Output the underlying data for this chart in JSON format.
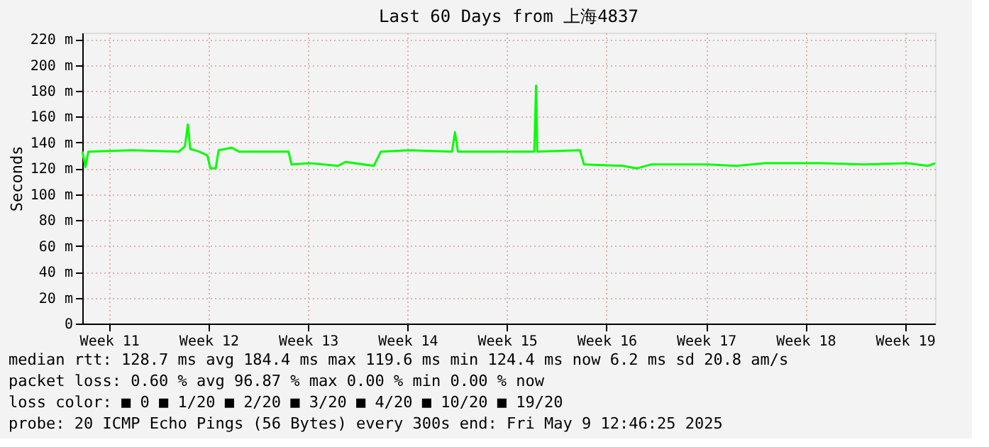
{
  "chart_data": {
    "type": "line",
    "title": "Last 60 Days from 上海4837",
    "ylabel": "Seconds",
    "x": [
      "2025-03-10T13:00",
      "2025-03-10T18:00",
      "2025-03-10T23:00",
      "2025-03-14T01:00",
      "2025-03-17T08:00",
      "2025-03-17T18:00",
      "2025-03-17T23:00",
      "2025-03-18T03:00",
      "2025-03-18T18:00",
      "2025-03-19T08:00",
      "2025-03-19T13:00",
      "2025-03-19T22:00",
      "2025-03-20T03:00",
      "2025-03-21T01:00",
      "2025-03-21T13:00",
      "2025-03-25T01:00",
      "2025-03-25T06:00",
      "2025-03-26T13:00",
      "2025-03-28T13:00",
      "2025-03-29T01:00",
      "2025-03-31T01:00",
      "2025-03-31T13:00",
      "2025-04-02T13:00",
      "2025-04-05T13:00",
      "2025-04-05T18:00",
      "2025-04-05T23:00",
      "2025-04-09T13:00",
      "2025-04-11T08:00",
      "2025-04-11T11:00",
      "2025-04-11T13:00",
      "2025-04-14T13:00",
      "2025-04-14T20:00",
      "2025-04-17T13:00",
      "2025-04-18T13:00",
      "2025-04-19T13:00",
      "2025-04-23T13:00",
      "2025-04-25T13:00",
      "2025-04-27T13:00",
      "2025-05-01T13:00",
      "2025-05-04T13:00",
      "2025-05-07T13:00",
      "2025-05-09T01:00",
      "2025-05-09T12:46"
    ],
    "series": [
      {
        "color": "#00ff00",
        "values": [
          133,
          121,
          133,
          134,
          133,
          137,
          154,
          135,
          133,
          130,
          120,
          120,
          134,
          136,
          133,
          133,
          123,
          124,
          122,
          125,
          122,
          133,
          134,
          133,
          148,
          133,
          133,
          133,
          184,
          133,
          134,
          123,
          122,
          120,
          123,
          123,
          122,
          124,
          124,
          123,
          124,
          122,
          124
        ]
      }
    ],
    "xlim": [
      "2025-03-10T12:46",
      "2025-05-09T12:46"
    ],
    "xticks": [
      {
        "value": "2025-03-12T10:00",
        "label": "Week 11"
      },
      {
        "value": "2025-03-19T10:00",
        "label": "Week 12"
      },
      {
        "value": "2025-03-26T10:00",
        "label": "Week 13"
      },
      {
        "value": "2025-04-02T10:00",
        "label": "Week 14"
      },
      {
        "value": "2025-04-09T10:00",
        "label": "Week 15"
      },
      {
        "value": "2025-04-16T10:00",
        "label": "Week 16"
      },
      {
        "value": "2025-04-23T10:00",
        "label": "Week 17"
      },
      {
        "value": "2025-04-30T10:00",
        "label": "Week 18"
      },
      {
        "value": "2025-05-07T10:00",
        "label": "Week 19"
      }
    ],
    "ylim": [
      0,
      225
    ],
    "yticks": [
      0,
      {
        "value": 20,
        "label": "20 m"
      },
      {
        "value": 40,
        "label": "40 m"
      },
      {
        "value": 60,
        "label": "60 m"
      },
      {
        "value": 80,
        "label": "80 m"
      },
      {
        "value": 100,
        "label": "100 m"
      },
      {
        "value": 120,
        "label": "120 m"
      },
      {
        "value": 140,
        "label": "140 m"
      },
      {
        "value": 160,
        "label": "160 m"
      },
      {
        "value": 180,
        "label": "180 m"
      },
      {
        "value": 200,
        "label": "200 m"
      },
      {
        "value": 220,
        "label": "220 m"
      }
    ],
    "grid": true,
    "marker": "none",
    "line_style": "solid",
    "annotations": [
      "median rtt:  128.7 ms avg  184.4 ms max  119.6 ms min  124.4 ms now  6.2 ms sd  20.8   am/s",
      "packet loss: 0.60 % avg  96.87 % max  0.00 % min  0.00 % now",
      "loss color:  ■ 0  ■ 1/20  ■ 2/20  ■ 3/20  ■ 4/20  ■ 10/20  ■ 19/20",
      "probe:       20 ICMP Echo Pings (56 Bytes) every 300s            end: Fri May  9 12:46:25 2025"
    ]
  }
}
